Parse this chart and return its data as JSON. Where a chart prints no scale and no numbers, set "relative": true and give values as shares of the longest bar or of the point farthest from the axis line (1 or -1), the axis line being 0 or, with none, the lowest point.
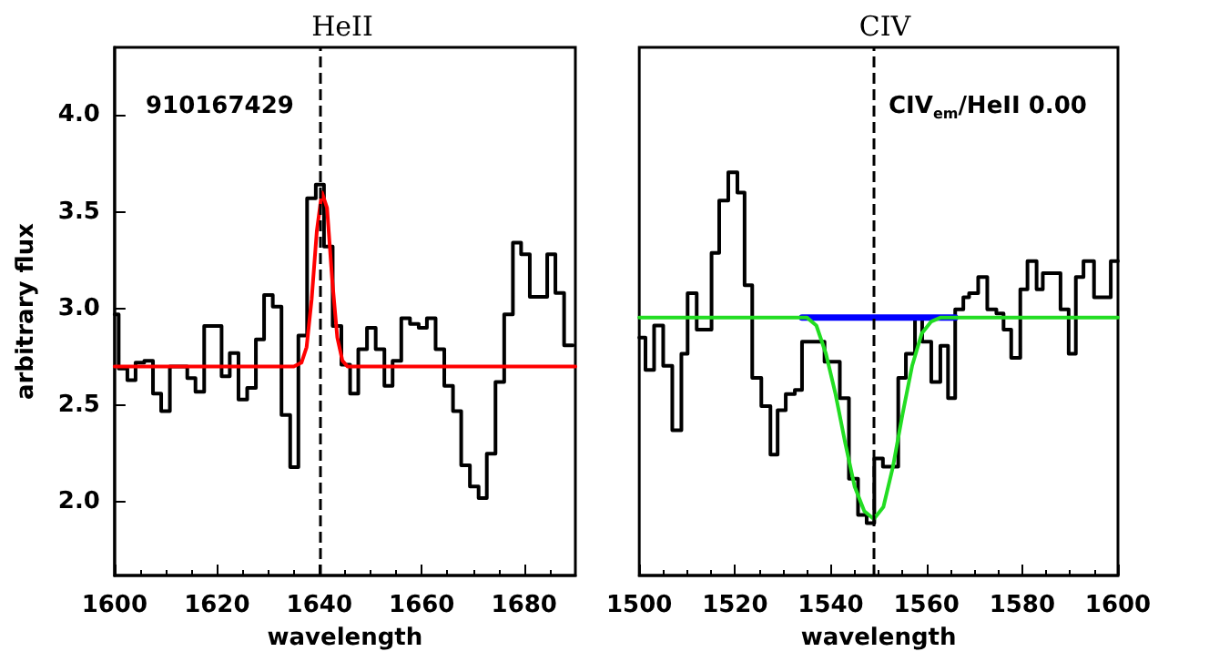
{
  "chart_data": [
    {
      "type": "step",
      "title": "HeII",
      "xlabel": "wavelength",
      "ylabel": "arbitrary flux",
      "annotations": [
        "910167429"
      ],
      "xlim": [
        1600,
        1690
      ],
      "xticks": [
        1600,
        1620,
        1640,
        1660,
        1680
      ],
      "ylim": [
        1.62,
        4.35
      ],
      "yticks": [
        {
          "value": 2,
          "label": "2.0"
        },
        {
          "value": 2.5,
          "label": "2.5"
        },
        {
          "value": 3,
          "label": "3.0"
        },
        {
          "value": 3.5,
          "label": "3.5"
        },
        {
          "value": 4,
          "label": "4.0"
        }
      ],
      "grid": false,
      "marker": "none",
      "ref_lines": [
        {
          "axis": "x",
          "value": 1640,
          "color": "#000000",
          "line_style": "dashed"
        }
      ],
      "series": [
        {
          "color": "#000000",
          "x": [
            1600,
            1600.8,
            1602.5,
            1604.1,
            1605.8,
            1607.5,
            1609.1,
            1610.8,
            1612.5,
            1614.2,
            1615.8,
            1617.5,
            1619.2,
            1620.9,
            1622.5,
            1624.2,
            1625.9,
            1627.6,
            1629.2,
            1630.9,
            1632.6,
            1634.3,
            1635.9,
            1637.6,
            1639.3,
            1640.9,
            1642.6,
            1644.3,
            1646.0,
            1647.6,
            1649.3,
            1651.0,
            1652.7,
            1654.3,
            1656.0,
            1657.7,
            1659.4,
            1661.0,
            1662.7,
            1664.4,
            1666.1,
            1667.7,
            1669.4,
            1671.1,
            1672.7,
            1674.4,
            1676.1,
            1677.8,
            1679.4,
            1681.1,
            1682.8,
            1684.5,
            1686.1,
            1687.8,
            1689.5
          ],
          "values": [
            2.97,
            2.69,
            2.63,
            2.72,
            2.73,
            2.56,
            2.47,
            2.7,
            2.7,
            2.64,
            2.57,
            2.91,
            2.91,
            2.65,
            2.77,
            2.53,
            2.59,
            2.84,
            3.07,
            3.01,
            2.45,
            2.18,
            2.86,
            3.57,
            3.64,
            3.32,
            2.91,
            2.71,
            2.56,
            2.79,
            2.9,
            2.79,
            2.6,
            2.73,
            2.95,
            2.92,
            2.9,
            2.95,
            2.79,
            2.6,
            2.47,
            2.19,
            2.08,
            2.02,
            2.25,
            2.62,
            2.97,
            3.34,
            3.28,
            3.06,
            3.06,
            3.28,
            3.08,
            2.81,
            2.81
          ]
        },
        {
          "type": "line",
          "color": "#ff0000",
          "x": [
            1600,
            1635,
            1636.5,
            1637.5,
            1638.5,
            1639.5,
            1640.5,
            1641.5,
            1642.5,
            1643.5,
            1644.5,
            1645.5,
            1690
          ],
          "values": [
            2.7,
            2.7,
            2.72,
            2.8,
            3.05,
            3.4,
            3.6,
            3.52,
            3.15,
            2.85,
            2.73,
            2.7,
            2.7
          ]
        }
      ]
    },
    {
      "type": "step",
      "title": "CIV",
      "xlabel": "wavelength",
      "annotations": [
        "CIV$_{em}$/HeII 0.00"
      ],
      "xlim": [
        1500,
        1600
      ],
      "xticks": [
        1500,
        1520,
        1540,
        1560,
        1580,
        1600
      ],
      "relative": true,
      "tick_labels": "x",
      "grid": false,
      "marker": "none",
      "ref_lines": [
        {
          "axis": "x",
          "value": 1549,
          "color": "#000000",
          "line_style": "dashed"
        }
      ],
      "series": [
        {
          "color": "#000000",
          "x": [
            1500,
            1501.3,
            1503.1,
            1505.0,
            1506.9,
            1508.8,
            1510.1,
            1512.0,
            1515.1,
            1516.7,
            1518.6,
            1520.5,
            1522.0,
            1523.6,
            1525.5,
            1527.4,
            1528.9,
            1530.6,
            1532.5,
            1534.0,
            1538.7,
            1541.9,
            1543.8,
            1545.7,
            1547.5,
            1549.1,
            1550.9,
            1554.1,
            1555.7,
            1557.6,
            1559.1,
            1561.0,
            1562.9,
            1564.5,
            1566.0,
            1567.7,
            1568.9,
            1570.8,
            1572.7,
            1574.6,
            1576.1,
            1577.7,
            1579.6,
            1581.1,
            1583.0,
            1584.3,
            1588.0,
            1589.7,
            1591.2,
            1592.8,
            1595.0,
            1596.6,
            1598.5,
            1600
          ],
          "values": [
            0.59,
            0.51,
            0.62,
            0.52,
            0.36,
            0.55,
            0.7,
            0.61,
            0.8,
            0.93,
            1.0,
            0.95,
            0.72,
            0.49,
            0.42,
            0.3,
            0.41,
            0.45,
            0.46,
            0.58,
            0.53,
            0.44,
            0.24,
            0.15,
            0.13,
            0.29,
            0.27,
            0.49,
            0.55,
            0.64,
            0.58,
            0.48,
            0.57,
            0.44,
            0.66,
            0.69,
            0.7,
            0.74,
            0.66,
            0.65,
            0.61,
            0.54,
            0.71,
            0.78,
            0.71,
            0.75,
            0.66,
            0.55,
            0.74,
            0.78,
            0.69,
            0.69,
            0.78,
            0.78
          ]
        },
        {
          "type": "line",
          "color": "#0000ff",
          "x": [
            1534,
            1566
          ],
          "values": [
            0.64,
            0.64
          ]
        },
        {
          "type": "line",
          "color": "#22dd22",
          "x": [
            1500,
            1535,
            1537,
            1539,
            1541,
            1543,
            1545,
            1547,
            1549,
            1551,
            1553,
            1555,
            1557,
            1559,
            1561,
            1563,
            1600
          ],
          "values": [
            0.64,
            0.64,
            0.62,
            0.55,
            0.45,
            0.33,
            0.22,
            0.16,
            0.14,
            0.17,
            0.27,
            0.4,
            0.52,
            0.6,
            0.63,
            0.64,
            0.64
          ]
        }
      ]
    }
  ]
}
